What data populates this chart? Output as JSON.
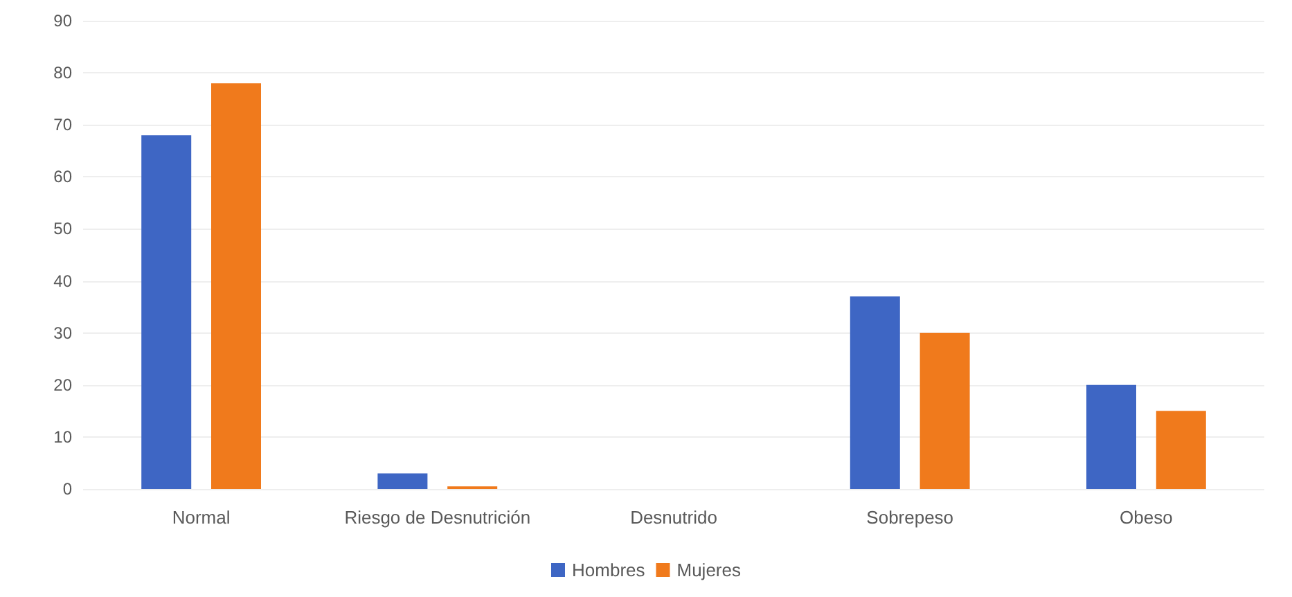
{
  "chart_data": {
    "type": "bar",
    "categories": [
      "Normal",
      "Riesgo de Desnutrición",
      "Desnutrido",
      "Sobrepeso",
      "Obeso"
    ],
    "series": [
      {
        "name": "Hombres",
        "color": "#3e66c4",
        "values": [
          68,
          3,
          0,
          37,
          20
        ]
      },
      {
        "name": "Mujeres",
        "color": "#f07a1c",
        "values": [
          78,
          0.5,
          0,
          30,
          15
        ]
      }
    ],
    "ylim": [
      0,
      90
    ],
    "yticks": [
      0,
      10,
      20,
      30,
      40,
      50,
      60,
      70,
      80,
      90
    ],
    "grid": "y",
    "legend": "bottom"
  }
}
